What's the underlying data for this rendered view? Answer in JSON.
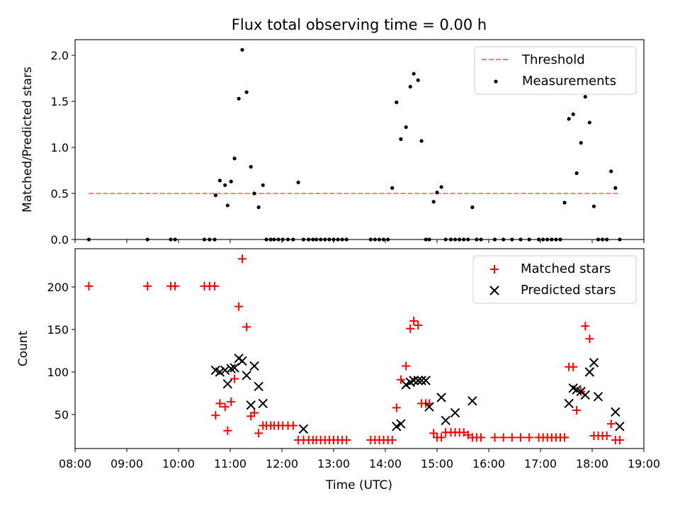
{
  "figure": {
    "title": "Flux total observing time = 0.00 h"
  },
  "chart_data": [
    {
      "type": "scatter",
      "panel": "top",
      "ylabel": "Matched/Predicted stars",
      "ylim": [
        0,
        2.17
      ],
      "yticks": [
        0.0,
        0.5,
        1.0,
        1.5,
        2.0
      ],
      "ytick_labels": [
        "0.0",
        "0.5",
        "1.0",
        "1.5",
        "2.0"
      ],
      "xlim": [
        8.0,
        19.0
      ],
      "legend_position": "upper right",
      "legend": [
        "Threshold",
        "Measurements"
      ],
      "threshold": {
        "name": "Threshold",
        "color": "#ff7f7f",
        "value": 0.5,
        "x_range": [
          "08:16",
          "18:32"
        ]
      },
      "series": [
        {
          "name": "Measurements",
          "color": "#000000",
          "x": [
            "08:16",
            "09:24",
            "09:51",
            "09:56",
            "10:30",
            "10:36",
            "10:42",
            "10:43",
            "10:48",
            "10:54",
            "10:57",
            "11:01",
            "11:05",
            "11:10",
            "11:14",
            "11:19",
            "11:24",
            "11:28",
            "11:33",
            "11:38",
            "11:42",
            "11:47",
            "11:51",
            "11:56",
            "12:01",
            "12:07",
            "12:13",
            "12:19",
            "12:25",
            "12:31",
            "12:36",
            "12:40",
            "12:45",
            "12:50",
            "12:55",
            "13:00",
            "13:05",
            "13:10",
            "13:15",
            "13:43",
            "13:48",
            "13:53",
            "13:58",
            "14:03",
            "14:08",
            "14:13",
            "14:18",
            "14:24",
            "14:29",
            "14:33",
            "14:38",
            "14:42",
            "14:47",
            "14:51",
            "14:56",
            "15:00",
            "15:05",
            "15:10",
            "15:16",
            "15:21",
            "15:26",
            "15:31",
            "15:36",
            "15:41",
            "15:46",
            "15:51",
            "16:07",
            "16:17",
            "16:27",
            "16:37",
            "16:47",
            "16:58",
            "17:03",
            "17:08",
            "17:13",
            "17:18",
            "17:23",
            "17:28",
            "17:33",
            "17:38",
            "17:42",
            "17:47",
            "17:52",
            "17:57",
            "18:02",
            "18:07",
            "18:12",
            "18:17",
            "18:22",
            "18:27",
            "18:32"
          ],
          "y": [
            0.0,
            0.0,
            0.0,
            0.0,
            0.0,
            0.0,
            0.0,
            0.48,
            0.64,
            0.59,
            0.37,
            0.63,
            0.88,
            1.53,
            2.06,
            1.6,
            0.79,
            0.5,
            0.35,
            0.59,
            0.0,
            0.0,
            0.0,
            0.0,
            0.0,
            0.0,
            0.0,
            0.62,
            0.0,
            0.0,
            0.0,
            0.0,
            0.0,
            0.0,
            0.0,
            0.0,
            0.0,
            0.0,
            0.0,
            0.0,
            0.0,
            0.0,
            0.0,
            0.0,
            0.56,
            1.49,
            1.09,
            1.22,
            1.66,
            1.8,
            1.73,
            1.07,
            0.0,
            0.0,
            0.41,
            0.51,
            0.57,
            0.0,
            0.0,
            0.0,
            0.0,
            0.0,
            0.0,
            0.35,
            0.0,
            0.0,
            0.0,
            0.0,
            0.0,
            0.0,
            0.0,
            0.0,
            0.0,
            0.0,
            0.0,
            0.0,
            0.0,
            0.4,
            1.31,
            1.36,
            0.72,
            1.05,
            1.55,
            1.27,
            0.36,
            0.0,
            0.0,
            0.0,
            0.74,
            0.56,
            0.0
          ]
        }
      ]
    },
    {
      "type": "scatter",
      "panel": "bottom",
      "xlabel": "Time (UTC)",
      "ylabel": "Count",
      "ylim": [
        10,
        245
      ],
      "yticks": [
        50,
        100,
        150,
        200
      ],
      "ytick_labels": [
        "50",
        "100",
        "150",
        "200"
      ],
      "xlim": [
        8.0,
        19.0
      ],
      "xticks": [
        8,
        9,
        10,
        11,
        12,
        13,
        14,
        15,
        16,
        17,
        18,
        19
      ],
      "xtick_labels": [
        "08:00",
        "09:00",
        "10:00",
        "11:00",
        "12:00",
        "13:00",
        "14:00",
        "15:00",
        "16:00",
        "17:00",
        "18:00",
        "19:00"
      ],
      "legend_position": "upper right",
      "legend": [
        "Matched stars",
        "Predicted stars"
      ],
      "series": [
        {
          "name": "Matched stars",
          "color": "#ff0000",
          "x": [
            "08:16",
            "09:24",
            "09:51",
            "09:56",
            "10:30",
            "10:36",
            "10:42",
            "10:43",
            "10:48",
            "10:54",
            "10:57",
            "11:01",
            "11:05",
            "11:10",
            "11:14",
            "11:19",
            "11:24",
            "11:28",
            "11:33",
            "11:38",
            "11:42",
            "11:47",
            "11:51",
            "11:56",
            "12:01",
            "12:07",
            "12:13",
            "12:19",
            "12:25",
            "12:31",
            "12:36",
            "12:40",
            "12:45",
            "12:50",
            "12:55",
            "13:00",
            "13:05",
            "13:10",
            "13:15",
            "13:43",
            "13:48",
            "13:53",
            "13:58",
            "14:03",
            "14:08",
            "14:13",
            "14:18",
            "14:24",
            "14:29",
            "14:33",
            "14:38",
            "14:42",
            "14:47",
            "14:51",
            "14:56",
            "15:00",
            "15:05",
            "15:10",
            "15:16",
            "15:21",
            "15:26",
            "15:31",
            "15:36",
            "15:41",
            "15:46",
            "15:51",
            "16:07",
            "16:17",
            "16:27",
            "16:37",
            "16:47",
            "16:58",
            "17:03",
            "17:08",
            "17:13",
            "17:18",
            "17:23",
            "17:28",
            "17:33",
            "17:38",
            "17:42",
            "17:47",
            "17:52",
            "17:57",
            "18:02",
            "18:07",
            "18:12",
            "18:17",
            "18:22",
            "18:27",
            "18:32"
          ],
          "y": [
            201,
            201,
            201,
            201,
            201,
            201,
            201,
            49,
            63,
            59,
            31,
            65,
            92,
            177,
            233,
            153,
            48,
            52,
            28,
            37,
            37,
            37,
            37,
            37,
            37,
            37,
            37,
            20,
            20,
            20,
            20,
            20,
            20,
            20,
            20,
            20,
            20,
            20,
            20,
            20,
            20,
            20,
            20,
            20,
            20,
            58,
            91,
            107,
            151,
            160,
            155,
            63,
            63,
            63,
            28,
            23,
            23,
            29,
            29,
            29,
            29,
            29,
            26,
            23,
            23,
            23,
            23,
            23,
            23,
            23,
            23,
            23,
            23,
            23,
            23,
            23,
            23,
            23,
            106,
            106,
            55,
            77,
            154,
            139,
            25,
            25,
            25,
            25,
            39,
            20,
            20
          ]
        },
        {
          "name": "Predicted stars",
          "color": "#000000",
          "x": [
            "10:43",
            "10:48",
            "10:54",
            "10:57",
            "11:01",
            "11:05",
            "11:10",
            "11:14",
            "11:19",
            "11:24",
            "11:28",
            "11:33",
            "11:38",
            "12:25",
            "14:13",
            "14:18",
            "14:24",
            "14:29",
            "14:33",
            "14:38",
            "14:42",
            "14:47",
            "14:51",
            "15:05",
            "15:10",
            "15:21",
            "15:41",
            "17:33",
            "17:38",
            "17:42",
            "17:47",
            "17:52",
            "17:57",
            "18:02",
            "18:07",
            "18:27",
            "18:32"
          ],
          "y": [
            102,
            100,
            102,
            86,
            104,
            105,
            116,
            113,
            96,
            61,
            107,
            83,
            63,
            33,
            36,
            39,
            85,
            88,
            90,
            90,
            90,
            90,
            59,
            70,
            43,
            52,
            66,
            63,
            81,
            79,
            77,
            73,
            100,
            111,
            71,
            53,
            36
          ]
        }
      ]
    }
  ]
}
